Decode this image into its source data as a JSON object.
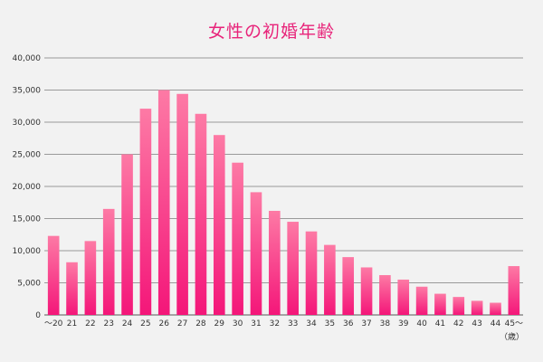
{
  "title": "女性の初婚年齢",
  "unit": "（歳）",
  "colors": {
    "bar_top": "#fd7aa5",
    "bar_bottom": "#f41679",
    "title": "#e8247a",
    "grid": "#9a9a9a",
    "background": "#f2f2f2"
  },
  "chart_data": {
    "type": "bar",
    "title": "女性の初婚年齢",
    "xlabel": "（歳）",
    "ylabel": "",
    "ylim": [
      0,
      40000
    ],
    "yticks": [
      0,
      5000,
      10000,
      15000,
      20000,
      25000,
      30000,
      35000,
      40000
    ],
    "ytick_labels": [
      "0",
      "5,000",
      "10,000",
      "15,000",
      "20,000",
      "25,000",
      "30,000",
      "35,000",
      "40,000"
    ],
    "grid": true,
    "legend": "none",
    "categories": [
      "～20",
      "21",
      "22",
      "23",
      "24",
      "25",
      "26",
      "27",
      "28",
      "29",
      "30",
      "31",
      "32",
      "33",
      "34",
      "35",
      "36",
      "37",
      "38",
      "39",
      "40",
      "41",
      "42",
      "43",
      "44",
      "45～"
    ],
    "values": [
      12300,
      8200,
      11500,
      16500,
      25000,
      32100,
      35000,
      34400,
      31300,
      28000,
      23700,
      19100,
      16200,
      14500,
      13000,
      10900,
      9000,
      7400,
      6200,
      5500,
      4400,
      3300,
      2800,
      2200,
      1900,
      7600
    ]
  }
}
